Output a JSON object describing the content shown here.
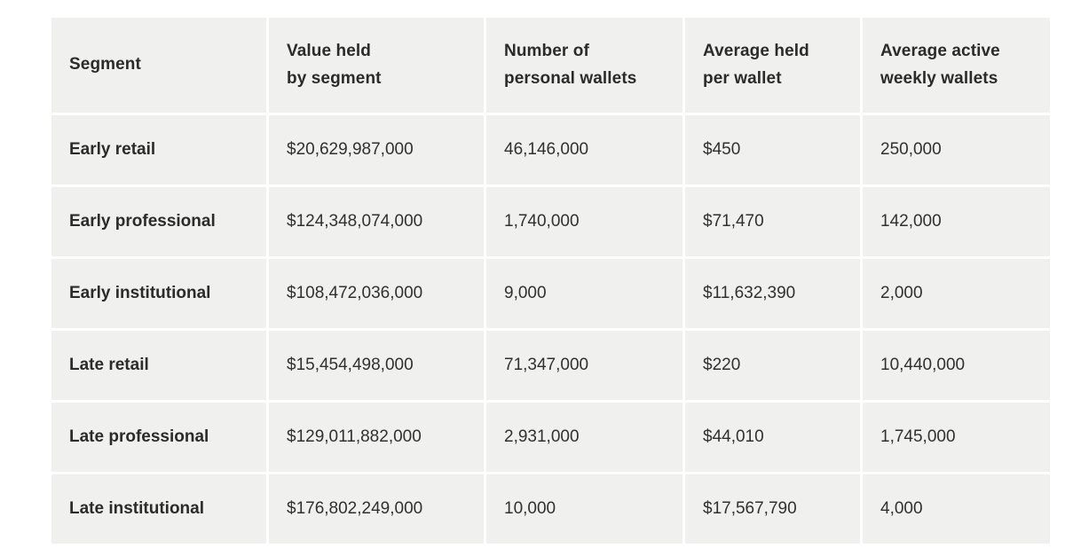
{
  "colors": {
    "page_bg": "#ffffff",
    "cell_bg": "#f0f0ee",
    "text": "#303030",
    "bold_text": "#2b2b2b"
  },
  "table": {
    "headers": [
      "Segment",
      "Value held\nby segment",
      "Number of\npersonal wallets",
      "Average held\nper wallet",
      "Average active\nweekly wallets"
    ],
    "rows": [
      {
        "segment": "Early retail",
        "value_held": "$20,629,987,000",
        "num_wallets": "46,146,000",
        "avg_held": "$450",
        "avg_active": "250,000"
      },
      {
        "segment": "Early professional",
        "value_held": "$124,348,074,000",
        "num_wallets": "1,740,000",
        "avg_held": "$71,470",
        "avg_active": "142,000"
      },
      {
        "segment": "Early institutional",
        "value_held": "$108,472,036,000",
        "num_wallets": "9,000",
        "avg_held": "$11,632,390",
        "avg_active": "2,000"
      },
      {
        "segment": "Late retail",
        "value_held": "$15,454,498,000",
        "num_wallets": "71,347,000",
        "avg_held": "$220",
        "avg_active": "10,440,000"
      },
      {
        "segment": "Late professional",
        "value_held": "$129,011,882,000",
        "num_wallets": "2,931,000",
        "avg_held": "$44,010",
        "avg_active": "1,745,000"
      },
      {
        "segment": "Late institutional",
        "value_held": "$176,802,249,000",
        "num_wallets": "10,000",
        "avg_held": "$17,567,790",
        "avg_active": "4,000"
      }
    ]
  }
}
